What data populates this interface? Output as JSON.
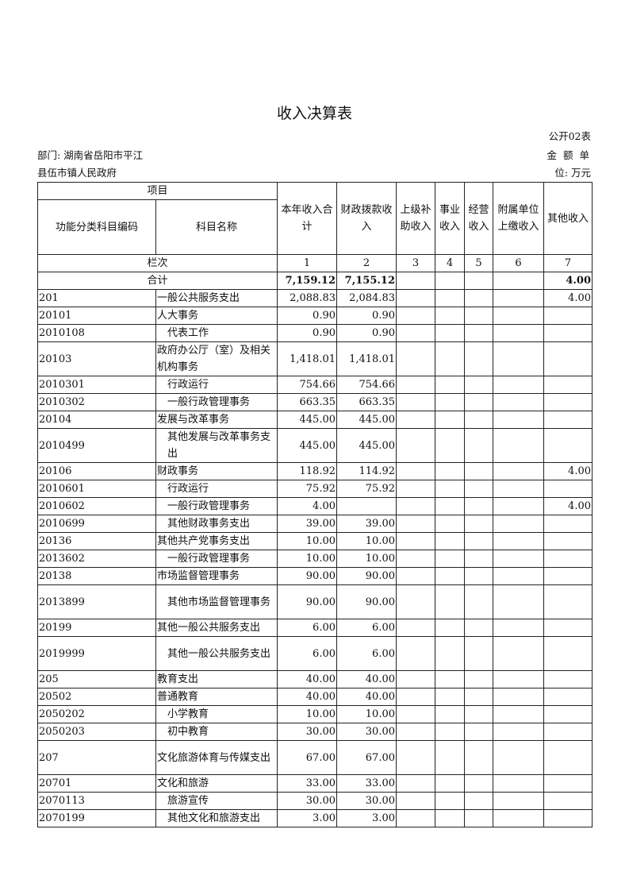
{
  "title": "收入决算表",
  "form_no": "公开02表",
  "department_line1": "部门: 湖南省岳阳市平江",
  "department_line2": "县伍市镇人民政府",
  "unit_line1": "金 额 单",
  "unit_line2": "位: 万元",
  "headers": {
    "item": "项目",
    "code": "功能分类科目编码",
    "name": "科目名称",
    "cols": [
      "本年收入合计",
      "财政拨款收入",
      "上级补助收入",
      "事业收入",
      "经营收入",
      "附属单位上缴收入",
      "其他收入"
    ],
    "col_index_label": "栏次",
    "col_numbers": [
      "1",
      "2",
      "3",
      "4",
      "5",
      "6",
      "7"
    ]
  },
  "total": {
    "label": "合计",
    "values": [
      "7,159.12",
      "7,155.12",
      "",
      "",
      "",
      "",
      "4.00"
    ]
  },
  "rows": [
    {
      "code": "201",
      "name": "一般公共服务支出",
      "indent": false,
      "values": [
        "2,088.83",
        "2,084.83",
        "",
        "",
        "",
        "",
        "4.00"
      ]
    },
    {
      "code": "20101",
      "name": "人大事务",
      "indent": false,
      "values": [
        "0.90",
        "0.90",
        "",
        "",
        "",
        "",
        ""
      ]
    },
    {
      "code": "2010108",
      "name": "代表工作",
      "indent": true,
      "values": [
        "0.90",
        "0.90",
        "",
        "",
        "",
        "",
        ""
      ]
    },
    {
      "code": "20103",
      "name": "政府办公厅（室）及相关机构事务",
      "indent": false,
      "double": true,
      "values": [
        "1,418.01",
        "1,418.01",
        "",
        "",
        "",
        "",
        ""
      ]
    },
    {
      "code": "2010301",
      "name": "行政运行",
      "indent": true,
      "values": [
        "754.66",
        "754.66",
        "",
        "",
        "",
        "",
        ""
      ]
    },
    {
      "code": "2010302",
      "name": "一般行政管理事务",
      "indent": true,
      "values": [
        "663.35",
        "663.35",
        "",
        "",
        "",
        "",
        ""
      ]
    },
    {
      "code": "20104",
      "name": "发展与改革事务",
      "indent": false,
      "values": [
        "445.00",
        "445.00",
        "",
        "",
        "",
        "",
        ""
      ]
    },
    {
      "code": "2010499",
      "name": "其他发展与改革事务支出",
      "indent": true,
      "double": true,
      "values": [
        "445.00",
        "445.00",
        "",
        "",
        "",
        "",
        ""
      ]
    },
    {
      "code": "20106",
      "name": "财政事务",
      "indent": false,
      "values": [
        "118.92",
        "114.92",
        "",
        "",
        "",
        "",
        "4.00"
      ]
    },
    {
      "code": "2010601",
      "name": "行政运行",
      "indent": true,
      "values": [
        "75.92",
        "75.92",
        "",
        "",
        "",
        "",
        ""
      ]
    },
    {
      "code": "2010602",
      "name": "一般行政管理事务",
      "indent": true,
      "values": [
        "4.00",
        "",
        "",
        "",
        "",
        "",
        "4.00"
      ]
    },
    {
      "code": "2010699",
      "name": "其他财政事务支出",
      "indent": true,
      "values": [
        "39.00",
        "39.00",
        "",
        "",
        "",
        "",
        ""
      ]
    },
    {
      "code": "20136",
      "name": "其他共产党事务支出",
      "indent": false,
      "values": [
        "10.00",
        "10.00",
        "",
        "",
        "",
        "",
        ""
      ]
    },
    {
      "code": "2013602",
      "name": "一般行政管理事务",
      "indent": true,
      "values": [
        "10.00",
        "10.00",
        "",
        "",
        "",
        "",
        ""
      ]
    },
    {
      "code": "20138",
      "name": "市场监督管理事务",
      "indent": false,
      "values": [
        "90.00",
        "90.00",
        "",
        "",
        "",
        "",
        ""
      ]
    },
    {
      "code": "2013899",
      "name": "其他市场监督管理事务",
      "indent": true,
      "double": true,
      "values": [
        "90.00",
        "90.00",
        "",
        "",
        "",
        "",
        ""
      ]
    },
    {
      "code": "20199",
      "name": "其他一般公共服务支出",
      "indent": false,
      "values": [
        "6.00",
        "6.00",
        "",
        "",
        "",
        "",
        ""
      ]
    },
    {
      "code": "2019999",
      "name": "其他一般公共服务支出",
      "indent": true,
      "double": true,
      "values": [
        "6.00",
        "6.00",
        "",
        "",
        "",
        "",
        ""
      ]
    },
    {
      "code": "205",
      "name": "教育支出",
      "indent": false,
      "values": [
        "40.00",
        "40.00",
        "",
        "",
        "",
        "",
        ""
      ]
    },
    {
      "code": "20502",
      "name": "普通教育",
      "indent": false,
      "values": [
        "40.00",
        "40.00",
        "",
        "",
        "",
        "",
        ""
      ]
    },
    {
      "code": "2050202",
      "name": "小学教育",
      "indent": true,
      "values": [
        "10.00",
        "10.00",
        "",
        "",
        "",
        "",
        ""
      ]
    },
    {
      "code": "2050203",
      "name": "初中教育",
      "indent": true,
      "values": [
        "30.00",
        "30.00",
        "",
        "",
        "",
        "",
        ""
      ]
    },
    {
      "code": "207",
      "name": "文化旅游体育与传媒支出",
      "indent": false,
      "double": true,
      "values": [
        "67.00",
        "67.00",
        "",
        "",
        "",
        "",
        ""
      ]
    },
    {
      "code": "20701",
      "name": "文化和旅游",
      "indent": false,
      "values": [
        "33.00",
        "33.00",
        "",
        "",
        "",
        "",
        ""
      ]
    },
    {
      "code": "2070113",
      "name": "旅游宣传",
      "indent": true,
      "values": [
        "30.00",
        "30.00",
        "",
        "",
        "",
        "",
        ""
      ]
    },
    {
      "code": "2070199",
      "name": "其他文化和旅游支出",
      "indent": true,
      "values": [
        "3.00",
        "3.00",
        "",
        "",
        "",
        "",
        ""
      ]
    }
  ]
}
